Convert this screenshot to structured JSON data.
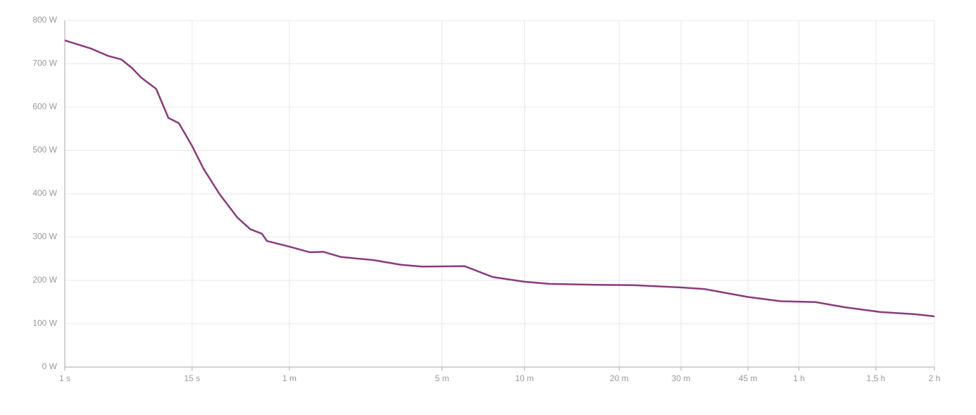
{
  "chart_data": {
    "type": "line",
    "x": [
      1,
      2,
      3,
      4,
      5,
      6,
      8,
      10,
      12,
      15,
      18,
      23,
      30,
      36,
      42,
      45,
      60,
      77,
      90,
      110,
      155,
      205,
      251,
      366,
      464,
      600,
      727,
      996,
      1322,
      1790,
      2087,
      2690,
      3253,
      3940,
      4606,
      5527,
      6564,
      7200
    ],
    "series": [
      {
        "color": "#8b3a7e",
        "values": [
          754,
          735,
          718,
          710,
          690,
          668,
          642,
          575,
          563,
          510,
          458,
          400,
          345,
          318,
          308,
          291,
          278,
          265,
          266,
          254,
          247,
          236,
          232,
          233,
          208,
          197,
          192,
          190,
          189,
          184,
          180,
          162,
          152,
          150,
          138,
          127,
          122,
          117
        ]
      }
    ],
    "xlim": [
      1,
      7200
    ],
    "x_scale": "pow",
    "x_exponent": 0.2,
    "xticks": [
      {
        "value": 1,
        "label": "1 s"
      },
      {
        "value": 15,
        "label": "15 s"
      },
      {
        "value": 60,
        "label": "1 m"
      },
      {
        "value": 300,
        "label": "5 m"
      },
      {
        "value": 600,
        "label": "10 m"
      },
      {
        "value": 1200,
        "label": "20 m"
      },
      {
        "value": 1800,
        "label": "30 m"
      },
      {
        "value": 2700,
        "label": "45 m"
      },
      {
        "value": 3600,
        "label": "1 h"
      },
      {
        "value": 5400,
        "label": "1,5 h"
      },
      {
        "value": 7200,
        "label": "2 h"
      }
    ],
    "ylim": [
      0,
      800
    ],
    "yticks": [
      {
        "value": 0,
        "label": "0 W"
      },
      {
        "value": 100,
        "label": "100 W"
      },
      {
        "value": 200,
        "label": "200 W"
      },
      {
        "value": 300,
        "label": "300 W"
      },
      {
        "value": 400,
        "label": "400 W"
      },
      {
        "value": 500,
        "label": "500 W"
      },
      {
        "value": 600,
        "label": "600 W"
      },
      {
        "value": 700,
        "label": "700 W"
      },
      {
        "value": 800,
        "label": "800 W"
      }
    ],
    "grid": true
  }
}
